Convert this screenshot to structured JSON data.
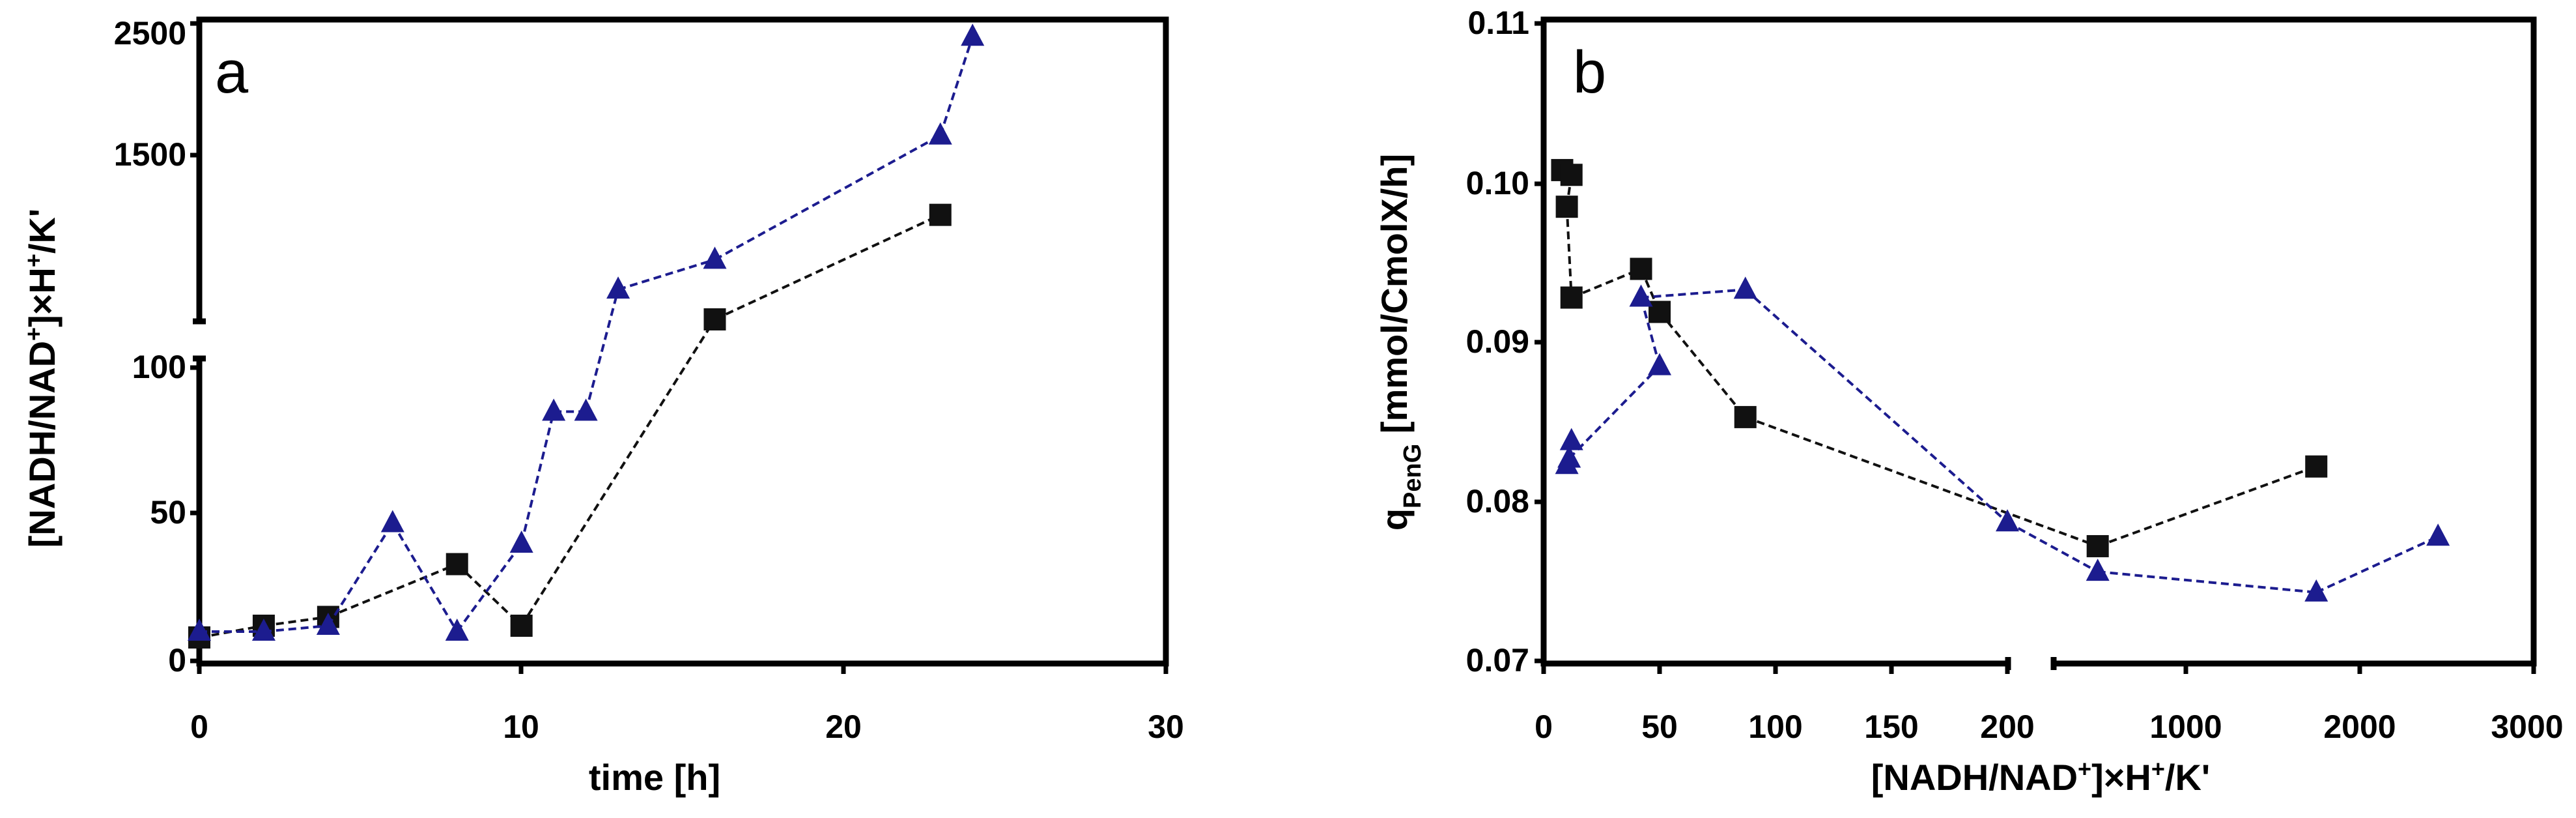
{
  "colors": {
    "black_series": "#111111",
    "blue_series": "#1c1c8f"
  },
  "chart_data": [
    {
      "panel": "a",
      "type": "line",
      "xlabel": "time [h]",
      "ylabel": "[NADH/NAD+]×H+/K'",
      "ylabel_parts": {
        "base1": "[NADH/NAD",
        "sup1": "+",
        "base2": "]×H",
        "sup2": "+",
        "base3": "/K'"
      },
      "xlim": [
        0,
        30
      ],
      "x_ticks": [
        "0",
        "10",
        "20",
        "30"
      ],
      "y_axis_broken": true,
      "y_lower_range": [
        0,
        100
      ],
      "y_lower_ticks": [
        "0",
        "50",
        "100"
      ],
      "y_upper_ticks": [
        "1500",
        "2500"
      ],
      "series": [
        {
          "name": "squares",
          "marker": "square",
          "color": "#111111",
          "x": [
            0,
            2,
            4,
            8,
            10,
            16,
            23
          ],
          "y": [
            8,
            12,
            15,
            33,
            12,
            400,
            1100
          ]
        },
        {
          "name": "triangles",
          "marker": "triangle",
          "color": "#1c1c8f",
          "x": [
            0,
            2,
            4,
            6,
            8,
            10,
            11,
            12,
            13,
            16,
            23,
            24
          ],
          "y": [
            10,
            10,
            12,
            47,
            10,
            40,
            85,
            85,
            600,
            800,
            1650,
            2400
          ]
        }
      ]
    },
    {
      "panel": "b",
      "type": "line",
      "xlabel": "[NADH/NAD+]×H+/K'",
      "xlabel_parts": {
        "base1": "[NADH/NAD",
        "sup1": "+",
        "base2": "]×H",
        "sup2": "+",
        "base3": "/K'"
      },
      "ylabel": "qPenG [mmol/CmolX/h]",
      "ylabel_parts": {
        "q": "q",
        "sub": "PenG",
        "rest": " [mmol/CmolX/h]"
      },
      "ylim": [
        0.07,
        0.11
      ],
      "y_ticks": [
        "0.07",
        "0.08",
        "0.09",
        "0.10",
        "0.11"
      ],
      "x_axis_broken": true,
      "x_lower_range": [
        0,
        200
      ],
      "x_lower_ticks": [
        "0",
        "50",
        "100",
        "150",
        "200"
      ],
      "x_upper_ticks": [
        "1000",
        "2000",
        "3000"
      ],
      "series": [
        {
          "name": "squares",
          "marker": "square",
          "color": "#111111",
          "x": [
            8,
            12,
            10,
            12,
            42,
            50,
            87,
            600,
            1750
          ],
          "y": [
            0.1008,
            0.1005,
            0.0985,
            0.0928,
            0.0946,
            0.0919,
            0.0853,
            0.0772,
            0.0822
          ]
        },
        {
          "name": "triangles",
          "marker": "triangle",
          "color": "#1c1c8f",
          "x": [
            10,
            12,
            11,
            50,
            42,
            87,
            200,
            600,
            1750,
            2450
          ],
          "y": [
            0.0823,
            0.0838,
            0.0827,
            0.0885,
            0.0928,
            0.0933,
            0.0787,
            0.0756,
            0.0743,
            0.0778
          ]
        }
      ]
    }
  ]
}
